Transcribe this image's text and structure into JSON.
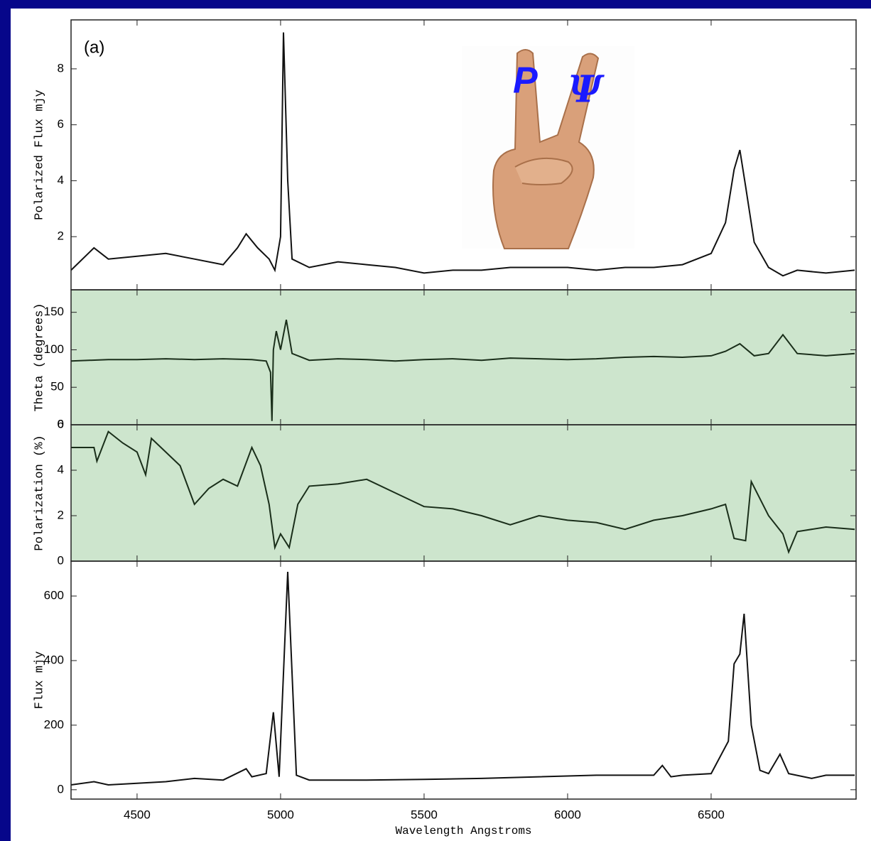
{
  "chart_data": [
    {
      "type": "line",
      "ylabel": "Polarized Flux mjy",
      "annotations": [
        "(a)",
        "P",
        "Ψ"
      ],
      "color": "#111111",
      "xlim": [
        4270,
        7005
      ],
      "ylim": [
        0.1,
        9.75
      ],
      "yticks": [
        2,
        4,
        6,
        8
      ],
      "x": [
        4270,
        4350,
        4400,
        4500,
        4600,
        4700,
        4800,
        4850,
        4880,
        4920,
        4960,
        4980,
        5000,
        5010,
        5025,
        5040,
        5100,
        5200,
        5300,
        5400,
        5500,
        5600,
        5700,
        5800,
        5900,
        6000,
        6100,
        6200,
        6300,
        6400,
        6500,
        6550,
        6580,
        6600,
        6620,
        6650,
        6700,
        6750,
        6800,
        6900,
        7000
      ],
      "values": [
        0.8,
        1.6,
        1.2,
        1.3,
        1.4,
        1.2,
        1.0,
        1.6,
        2.1,
        1.6,
        1.2,
        0.8,
        2.0,
        9.3,
        4.0,
        1.2,
        0.9,
        1.1,
        1.0,
        0.9,
        0.7,
        0.8,
        0.8,
        0.9,
        0.9,
        0.9,
        0.8,
        0.9,
        0.9,
        1.0,
        1.4,
        2.5,
        4.4,
        5.1,
        3.8,
        1.8,
        0.9,
        0.6,
        0.8,
        0.7,
        0.8
      ]
    },
    {
      "type": "line",
      "ylabel": "Theta (degrees)",
      "color": "#1a2e1a",
      "plot_background": "#cde5cd",
      "xlim": [
        4270,
        7005
      ],
      "ylim": [
        0,
        180
      ],
      "yticks": [
        0,
        50,
        100,
        150
      ],
      "x": [
        4270,
        4400,
        4500,
        4600,
        4700,
        4800,
        4900,
        4950,
        4965,
        4970,
        4975,
        4985,
        5000,
        5020,
        5040,
        5100,
        5200,
        5300,
        5400,
        5500,
        5600,
        5700,
        5800,
        5900,
        6000,
        6100,
        6200,
        6300,
        6400,
        6500,
        6550,
        6600,
        6650,
        6700,
        6750,
        6800,
        6900,
        7000
      ],
      "values": [
        85,
        87,
        87,
        88,
        87,
        88,
        87,
        85,
        70,
        5,
        100,
        125,
        100,
        140,
        95,
        86,
        88,
        87,
        85,
        87,
        88,
        86,
        89,
        88,
        87,
        88,
        90,
        91,
        90,
        92,
        98,
        108,
        92,
        95,
        120,
        95,
        92,
        95
      ]
    },
    {
      "type": "line",
      "ylabel": "Polarization (%)",
      "color": "#1a2e1a",
      "plot_background": "#cde5cd",
      "xlim": [
        4270,
        7005
      ],
      "ylim": [
        0,
        6
      ],
      "yticks": [
        0,
        2,
        4,
        6
      ],
      "x": [
        4270,
        4350,
        4360,
        4400,
        4450,
        4500,
        4530,
        4550,
        4600,
        4650,
        4700,
        4750,
        4800,
        4850,
        4900,
        4930,
        4960,
        4980,
        5000,
        5030,
        5060,
        5100,
        5200,
        5300,
        5400,
        5500,
        5600,
        5700,
        5800,
        5900,
        6000,
        6100,
        6200,
        6300,
        6400,
        6500,
        6550,
        6580,
        6620,
        6640,
        6700,
        6750,
        6770,
        6800,
        6900,
        7000
      ],
      "values": [
        5.0,
        5.0,
        4.4,
        5.7,
        5.2,
        4.8,
        3.8,
        5.4,
        4.8,
        4.2,
        2.5,
        3.2,
        3.6,
        3.3,
        5.0,
        4.2,
        2.5,
        0.6,
        1.2,
        0.6,
        2.5,
        3.3,
        3.4,
        3.6,
        3.0,
        2.4,
        2.3,
        2.0,
        1.6,
        2.0,
        1.8,
        1.7,
        1.4,
        1.8,
        2.0,
        2.3,
        2.5,
        1.0,
        0.9,
        3.5,
        2.0,
        1.2,
        0.4,
        1.3,
        1.5,
        1.4
      ]
    },
    {
      "type": "line",
      "ylabel": "Flux mjy",
      "xlabel": "Wavelength Angstroms",
      "color": "#111111",
      "xlim": [
        4270,
        7005
      ],
      "ylim": [
        -29,
        708
      ],
      "yticks": [
        0,
        200,
        400,
        600
      ],
      "xticks": [
        4500,
        5000,
        5500,
        6000,
        6500
      ],
      "x": [
        4270,
        4350,
        4400,
        4500,
        4600,
        4700,
        4800,
        4880,
        4900,
        4950,
        4975,
        4995,
        5025,
        5055,
        5100,
        5300,
        5500,
        5700,
        5900,
        6100,
        6300,
        6330,
        6360,
        6400,
        6500,
        6560,
        6580,
        6600,
        6615,
        6640,
        6670,
        6700,
        6740,
        6770,
        6850,
        6900,
        7000
      ],
      "values": [
        15,
        25,
        15,
        20,
        25,
        35,
        30,
        65,
        40,
        50,
        240,
        40,
        675,
        45,
        30,
        30,
        32,
        35,
        40,
        45,
        45,
        75,
        40,
        45,
        50,
        150,
        390,
        420,
        545,
        200,
        60,
        50,
        110,
        50,
        35,
        45,
        45
      ]
    }
  ]
}
